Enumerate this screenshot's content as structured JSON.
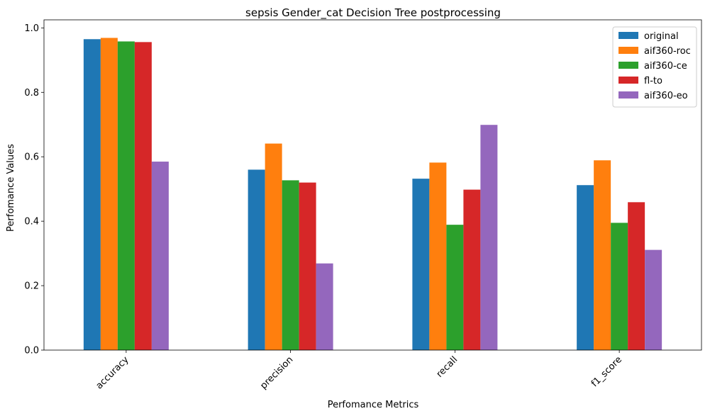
{
  "chart_data": {
    "type": "bar",
    "title": "sepsis Gender_cat Decision Tree postprocessing",
    "xlabel": "Perfomance Metrics",
    "ylabel": "Perfomance Values",
    "categories": [
      "accuracy",
      "precision",
      "recall",
      "f1_score"
    ],
    "ylim": [
      0,
      1.0
    ],
    "yticks": [
      "0.0",
      "0.2",
      "0.4",
      "0.6",
      "0.8",
      "1.0"
    ],
    "grid": false,
    "legend_position": "top-right",
    "series": [
      {
        "name": "original",
        "color": "#1f77b4",
        "values": [
          0.965,
          0.56,
          0.532,
          0.512
        ]
      },
      {
        "name": "aif360-roc",
        "color": "#ff7f0e",
        "values": [
          0.969,
          0.641,
          0.582,
          0.589
        ]
      },
      {
        "name": "aif360-ce",
        "color": "#2ca02c",
        "values": [
          0.958,
          0.527,
          0.389,
          0.395
        ]
      },
      {
        "name": "fl-to",
        "color": "#d62728",
        "values": [
          0.956,
          0.52,
          0.498,
          0.459
        ]
      },
      {
        "name": "aif360-eo",
        "color": "#9467bd",
        "values": [
          0.585,
          0.269,
          0.699,
          0.311
        ]
      }
    ]
  }
}
